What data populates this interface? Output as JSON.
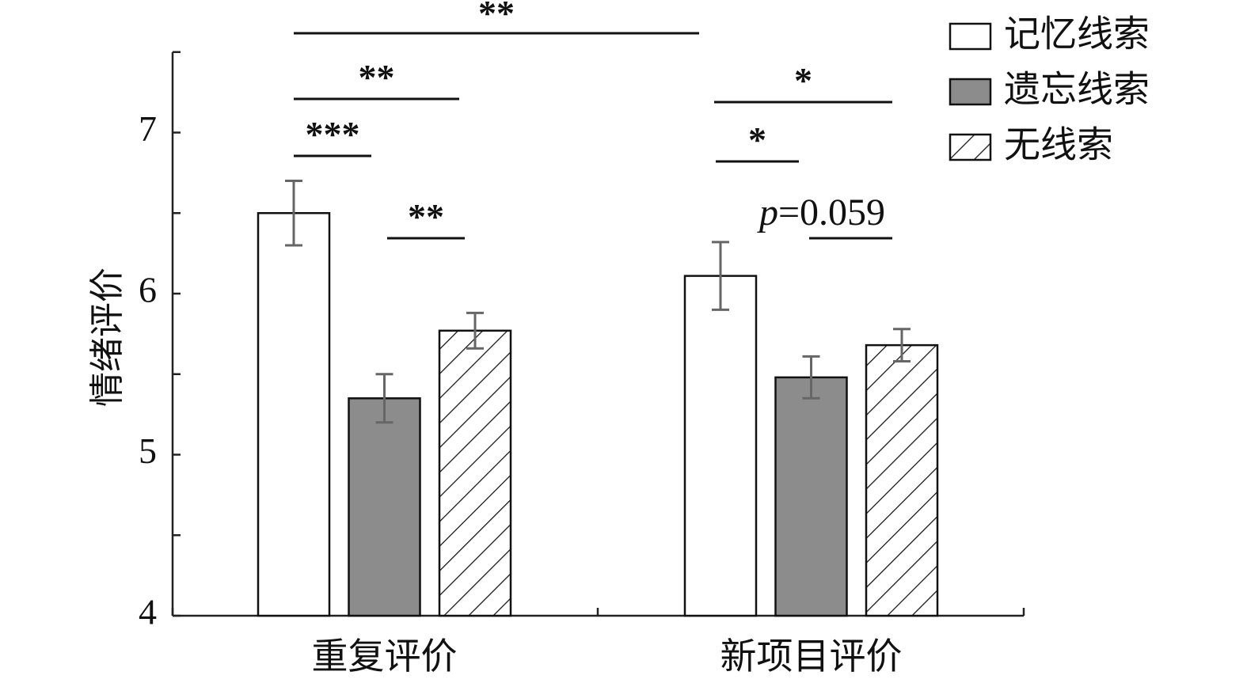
{
  "chart_data": {
    "type": "bar",
    "title": "",
    "xlabel": "",
    "ylabel": "情绪评价",
    "ylim": [
      4,
      7.5
    ],
    "yticks": [
      "4",
      "5",
      "6",
      "7"
    ],
    "categories": [
      "重复评价",
      "新项目评价"
    ],
    "series": [
      {
        "name": "记忆线索",
        "fill": "#ffffff",
        "pattern": "none",
        "values": [
          6.5,
          6.11
        ],
        "errors": [
          0.2,
          0.21
        ]
      },
      {
        "name": "遗忘线索",
        "fill": "#8c8c8c",
        "pattern": "none",
        "values": [
          5.35,
          5.48
        ],
        "errors": [
          0.15,
          0.13
        ]
      },
      {
        "name": "无线索",
        "fill": "#ffffff",
        "pattern": "hatch",
        "values": [
          5.77,
          5.68
        ],
        "errors": [
          0.11,
          0.1
        ]
      }
    ],
    "legend_position": "top-right",
    "grid": false,
    "annotations": [
      {
        "label": "**",
        "from": {
          "category": 0,
          "series": 0
        },
        "to": {
          "category": 1,
          "series": 0
        }
      },
      {
        "label": "**",
        "from": {
          "category": 0,
          "series": 0
        },
        "to": {
          "category": 0,
          "series": 2
        }
      },
      {
        "label": "***",
        "from": {
          "category": 0,
          "series": 0
        },
        "to": {
          "category": 0,
          "series": 1
        }
      },
      {
        "label": "**",
        "from": {
          "category": 0,
          "series": 1
        },
        "to": {
          "category": 0,
          "series": 2
        }
      },
      {
        "label": "*",
        "from": {
          "category": 1,
          "series": 0
        },
        "to": {
          "category": 1,
          "series": 2
        }
      },
      {
        "label": "*",
        "from": {
          "category": 1,
          "series": 0
        },
        "to": {
          "category": 1,
          "series": 1
        }
      },
      {
        "label_italic": "p",
        "label": "=0.059",
        "from": {
          "category": 1,
          "series": 1
        },
        "to": {
          "category": 1,
          "series": 2
        }
      }
    ]
  }
}
